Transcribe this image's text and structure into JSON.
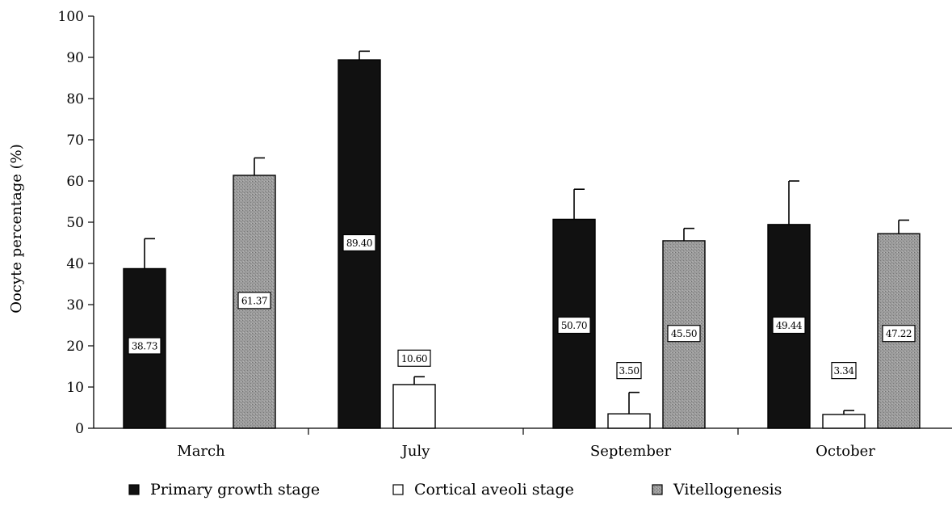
{
  "chart_data": {
    "type": "bar",
    "categories": [
      "March",
      "July",
      "September",
      "October"
    ],
    "ylabel": "Oocyte percentage (%)",
    "xlabel": "",
    "ylim": [
      0,
      100
    ],
    "yticks": [
      0,
      10,
      20,
      30,
      40,
      50,
      60,
      70,
      80,
      90,
      100
    ],
    "grid": false,
    "legend_position": "bottom",
    "series": [
      {
        "name": "Primary growth stage",
        "color": "#111111",
        "values": [
          38.73,
          89.4,
          50.7,
          49.44
        ],
        "labels": [
          "38.73",
          "89.40",
          "50.70",
          "49.44"
        ],
        "error_upper": [
          46.0,
          91.5,
          58.0,
          60.0
        ]
      },
      {
        "name": "Cortical aveoli stage",
        "color": "#ffffff",
        "values": [
          null,
          10.6,
          3.5,
          3.34
        ],
        "labels": [
          "",
          "10.60",
          "3.50",
          "3.34"
        ],
        "error_upper": [
          null,
          12.5,
          8.7,
          4.3
        ]
      },
      {
        "name": "Vitellogenesis",
        "color": "#9a9a9a",
        "values": [
          61.37,
          null,
          45.5,
          47.22
        ],
        "labels": [
          "61.37",
          "",
          "45.50",
          "47.22"
        ],
        "error_upper": [
          65.6,
          null,
          48.5,
          50.5
        ]
      }
    ]
  }
}
